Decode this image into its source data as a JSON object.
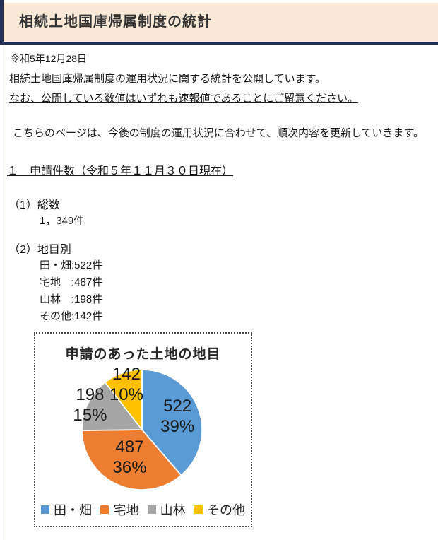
{
  "page": {
    "title": "相続土地国庫帰属制度の統計",
    "date": "令和5年12月28日",
    "intro_line1": "相続土地国庫帰属制度の運用状況に関する統計を公開しています。",
    "intro_line2": "なお、公開している数値はいずれも速報値であることにご留意ください。",
    "update_note": "こちらのページは、今後の制度の運用状況に合わせて、順次内容を更新していきます。",
    "section1": {
      "heading": "１　申請件数（令和５年１１月３０日現在）",
      "sub1_label": "（1）総数",
      "sub1_value": "1，349件",
      "sub2_label": "（2）地目別",
      "sub2_items": [
        "田・畑:522件",
        "宅地　:487件",
        "山林　:198件",
        "その他:142件"
      ]
    },
    "colors": {
      "header_background": "#fbe9d8",
      "header_accent": "#232f55"
    }
  },
  "chart_data": {
    "type": "pie",
    "title": "申請のあった土地の地目",
    "categories": [
      "田・畑",
      "宅地",
      "山林",
      "その他"
    ],
    "values": [
      522,
      487,
      198,
      142
    ],
    "percent_labels": [
      "39%",
      "36%",
      "15%",
      "10%"
    ],
    "colors": [
      "#5b9bd5",
      "#ed7d31",
      "#a5a5a5",
      "#ffc000"
    ],
    "start_angle_deg": 0,
    "direction": "clockwise",
    "legend_position": "bottom",
    "label_radius_factors": [
      0.63,
      0.5,
      0.96,
      0.8
    ]
  }
}
